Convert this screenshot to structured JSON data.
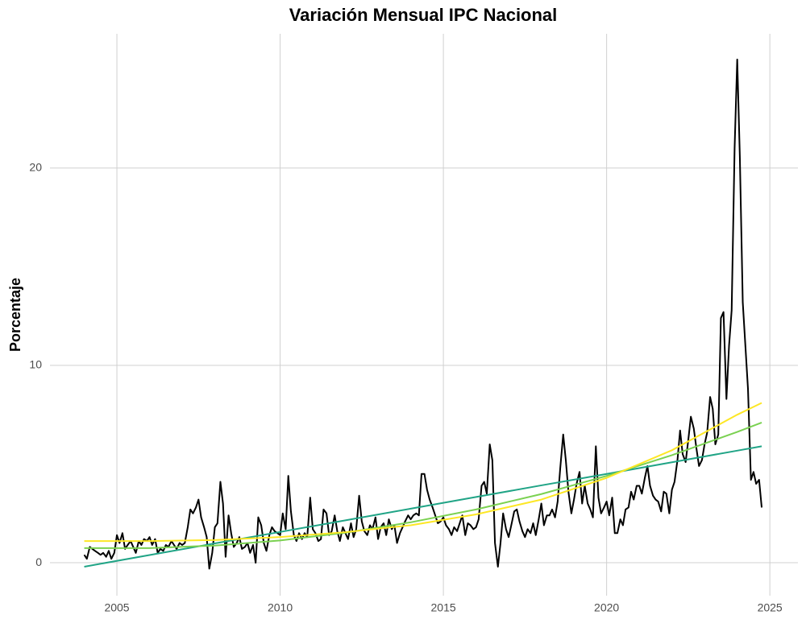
{
  "chart_data": {
    "type": "line",
    "title": "Variación Mensual IPC Nacional",
    "y_label": "Porcentaje",
    "xlim": [
      2002.95,
      2025.86
    ],
    "xticks": [
      2005,
      2010,
      2015,
      2020,
      2025
    ],
    "ylim": [
      -1.67,
      26.8
    ],
    "yticks": [
      0,
      10,
      20
    ],
    "grid": true,
    "x": [
      2004.0,
      2004.08,
      2004.17,
      2004.25,
      2004.33,
      2004.42,
      2004.5,
      2004.58,
      2004.67,
      2004.75,
      2004.83,
      2004.92,
      2005.0,
      2005.08,
      2005.17,
      2005.25,
      2005.33,
      2005.42,
      2005.5,
      2005.58,
      2005.67,
      2005.75,
      2005.83,
      2005.92,
      2006.0,
      2006.08,
      2006.17,
      2006.25,
      2006.33,
      2006.42,
      2006.5,
      2006.58,
      2006.67,
      2006.75,
      2006.83,
      2006.92,
      2007.0,
      2007.08,
      2007.17,
      2007.25,
      2007.33,
      2007.42,
      2007.5,
      2007.58,
      2007.67,
      2007.75,
      2007.83,
      2007.92,
      2008.0,
      2008.08,
      2008.17,
      2008.25,
      2008.33,
      2008.42,
      2008.5,
      2008.58,
      2008.67,
      2008.75,
      2008.83,
      2008.92,
      2009.0,
      2009.08,
      2009.17,
      2009.25,
      2009.33,
      2009.42,
      2009.5,
      2009.58,
      2009.67,
      2009.75,
      2009.83,
      2009.92,
      2010.0,
      2010.08,
      2010.17,
      2010.25,
      2010.33,
      2010.42,
      2010.5,
      2010.58,
      2010.67,
      2010.75,
      2010.83,
      2010.92,
      2011.0,
      2011.08,
      2011.17,
      2011.25,
      2011.33,
      2011.42,
      2011.5,
      2011.58,
      2011.67,
      2011.75,
      2011.83,
      2011.92,
      2012.0,
      2012.08,
      2012.17,
      2012.25,
      2012.33,
      2012.42,
      2012.5,
      2012.58,
      2012.67,
      2012.75,
      2012.83,
      2012.92,
      2013.0,
      2013.08,
      2013.17,
      2013.25,
      2013.33,
      2013.42,
      2013.5,
      2013.58,
      2013.67,
      2013.75,
      2013.83,
      2013.92,
      2014.0,
      2014.08,
      2014.17,
      2014.25,
      2014.33,
      2014.42,
      2014.5,
      2014.58,
      2014.67,
      2014.75,
      2014.83,
      2014.92,
      2015.0,
      2015.08,
      2015.17,
      2015.25,
      2015.33,
      2015.42,
      2015.5,
      2015.58,
      2015.67,
      2015.75,
      2015.83,
      2015.92,
      2016.0,
      2016.08,
      2016.17,
      2016.25,
      2016.33,
      2016.42,
      2016.5,
      2016.58,
      2016.67,
      2016.75,
      2016.83,
      2016.92,
      2017.0,
      2017.08,
      2017.17,
      2017.25,
      2017.33,
      2017.42,
      2017.5,
      2017.58,
      2017.67,
      2017.75,
      2017.83,
      2017.92,
      2018.0,
      2018.08,
      2018.17,
      2018.25,
      2018.33,
      2018.42,
      2018.5,
      2018.58,
      2018.67,
      2018.75,
      2018.83,
      2018.92,
      2019.0,
      2019.08,
      2019.17,
      2019.25,
      2019.33,
      2019.42,
      2019.5,
      2019.58,
      2019.67,
      2019.75,
      2019.83,
      2019.92,
      2020.0,
      2020.08,
      2020.17,
      2020.25,
      2020.33,
      2020.42,
      2020.5,
      2020.58,
      2020.67,
      2020.75,
      2020.83,
      2020.92,
      2021.0,
      2021.08,
      2021.17,
      2021.25,
      2021.33,
      2021.42,
      2021.5,
      2021.58,
      2021.67,
      2021.75,
      2021.83,
      2021.92,
      2022.0,
      2022.08,
      2022.17,
      2022.25,
      2022.33,
      2022.42,
      2022.5,
      2022.58,
      2022.67,
      2022.75,
      2022.83,
      2022.92,
      2023.0,
      2023.08,
      2023.17,
      2023.25,
      2023.33,
      2023.42,
      2023.5,
      2023.58,
      2023.67,
      2023.75,
      2023.83,
      2023.92,
      2024.0,
      2024.08,
      2024.17,
      2024.25,
      2024.33,
      2024.42,
      2024.5,
      2024.58,
      2024.67,
      2024.75
    ],
    "series": [
      {
        "color": "#000000",
        "values": [
          0.4,
          0.2,
          0.8,
          0.7,
          0.6,
          0.5,
          0.4,
          0.5,
          0.3,
          0.6,
          0.2,
          0.5,
          1.4,
          1.0,
          1.5,
          0.7,
          0.9,
          1.1,
          0.8,
          0.5,
          1.1,
          0.9,
          1.2,
          1.1,
          1.3,
          0.9,
          1.2,
          0.5,
          0.7,
          0.6,
          0.9,
          0.8,
          1.1,
          0.9,
          0.7,
          1.0,
          0.9,
          1.0,
          1.8,
          2.7,
          2.5,
          2.8,
          3.2,
          2.3,
          1.8,
          1.3,
          -0.3,
          0.5,
          1.8,
          2.0,
          4.1,
          3.0,
          0.3,
          2.4,
          1.5,
          0.8,
          1.0,
          1.3,
          0.7,
          0.8,
          1.0,
          0.5,
          0.9,
          0.0,
          2.3,
          1.9,
          1.0,
          0.6,
          1.4,
          1.8,
          1.6,
          1.5,
          1.4,
          2.5,
          1.7,
          4.4,
          2.6,
          1.4,
          1.1,
          1.5,
          1.2,
          1.5,
          1.3,
          3.3,
          1.7,
          1.5,
          1.1,
          1.2,
          2.7,
          2.5,
          1.4,
          1.6,
          2.4,
          1.6,
          1.1,
          1.8,
          1.5,
          1.2,
          2.0,
          1.3,
          1.7,
          3.4,
          2.1,
          1.6,
          1.4,
          1.9,
          1.7,
          2.3,
          1.2,
          1.8,
          2.0,
          1.4,
          2.2,
          1.7,
          1.9,
          1.0,
          1.5,
          1.8,
          2.1,
          2.4,
          2.2,
          2.4,
          2.5,
          2.4,
          4.5,
          4.5,
          3.7,
          3.2,
          2.8,
          2.4,
          2.0,
          2.1,
          2.3,
          1.9,
          1.7,
          1.4,
          1.8,
          1.6,
          2.0,
          2.4,
          1.4,
          2.0,
          1.9,
          1.7,
          1.8,
          2.2,
          3.9,
          4.1,
          3.5,
          6.0,
          5.2,
          1.0,
          -0.2,
          1.0,
          2.5,
          1.7,
          1.3,
          1.9,
          2.6,
          2.7,
          2.1,
          1.6,
          1.3,
          1.7,
          1.5,
          2.0,
          1.4,
          2.2,
          3.0,
          1.9,
          2.4,
          2.4,
          2.7,
          2.3,
          3.1,
          4.8,
          6.5,
          5.2,
          3.6,
          2.5,
          3.2,
          4.0,
          4.6,
          3.0,
          3.9,
          3.0,
          2.7,
          2.3,
          5.9,
          3.3,
          2.5,
          2.8,
          3.1,
          2.4,
          3.3,
          1.5,
          1.5,
          2.2,
          1.9,
          2.7,
          2.8,
          3.6,
          3.2,
          3.9,
          3.9,
          3.5,
          4.3,
          4.9,
          3.9,
          3.4,
          3.2,
          3.1,
          2.6,
          3.6,
          3.5,
          2.5,
          3.7,
          4.1,
          5.2,
          6.7,
          5.5,
          5.1,
          6.2,
          7.4,
          6.8,
          5.8,
          4.9,
          5.2,
          6.0,
          6.6,
          8.4,
          7.8,
          6.0,
          6.5,
          12.4,
          12.7,
          8.3,
          11.0,
          12.8,
          21.0,
          25.5,
          20.6,
          13.2,
          11.0,
          8.8,
          4.2,
          4.6,
          4.0,
          4.2,
          2.8
        ]
      },
      {
        "color": "#20a486",
        "x": [
          2004,
          2006,
          2008,
          2010,
          2012,
          2014,
          2016,
          2018,
          2020,
          2022,
          2024,
          2024.75
        ],
        "values": [
          -0.2,
          0.39,
          0.98,
          1.56,
          2.15,
          2.74,
          3.33,
          3.92,
          4.5,
          5.09,
          5.68,
          5.9
        ]
      },
      {
        "color": "#7ad151",
        "x": [
          2004,
          2006,
          2008,
          2010,
          2012,
          2014,
          2016,
          2018,
          2020,
          2022,
          2024,
          2024.75
        ],
        "values": [
          0.74,
          0.74,
          0.87,
          1.13,
          1.52,
          2.05,
          2.7,
          3.48,
          4.4,
          5.45,
          6.63,
          7.1
        ]
      },
      {
        "color": "#fde725",
        "x": [
          2004,
          2006,
          2008,
          2010,
          2012,
          2014,
          2016,
          2018,
          2020,
          2022,
          2024,
          2024.75
        ],
        "values": [
          1.1,
          1.1,
          1.15,
          1.3,
          1.55,
          1.9,
          2.45,
          3.2,
          4.3,
          5.7,
          7.5,
          8.1
        ]
      }
    ]
  }
}
